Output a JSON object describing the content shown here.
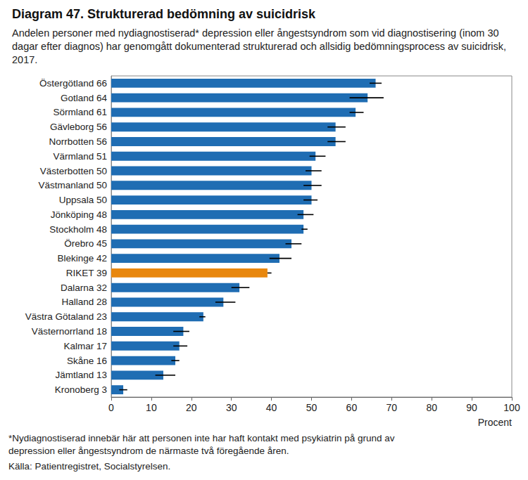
{
  "chart_data": {
    "type": "bar",
    "orientation": "horizontal",
    "title": "Diagram 47. Strukturerad bedömning av suicidrisk",
    "subtitle": "Andelen personer med nydiagnostiserad* depression eller ångestsyndrom som vid diagnostisering (inom 30 dagar efter diagnos) har genomgått dokumenterad strukturerad och allsidig bedömningsprocess av suicidrisk, 2017.",
    "categories": [
      "Östergötland 66",
      "Gotland 64",
      "Sörmland 61",
      "Gävleborg 56",
      "Norrbotten 56",
      "Värmland 51",
      "Västerbotten 50",
      "Västmanland 50",
      "Uppsala 50",
      "Jönköping 48",
      "Stockholm 48",
      "Örebro 45",
      "Blekinge 42",
      "RIKET 39",
      "Dalarna 32",
      "Halland 28",
      "Västra Götaland 23",
      "Västernorrland 18",
      "Kalmar 17",
      "Skåne 16",
      "Jämtland 13",
      "Kronoberg 3"
    ],
    "values": [
      66,
      64,
      61,
      56,
      56,
      51,
      50,
      50,
      50,
      48,
      48,
      45,
      42,
      39,
      32,
      28,
      23,
      18,
      17,
      16,
      13,
      3
    ],
    "error_low": [
      64.5,
      59.5,
      59.5,
      54,
      54,
      49.5,
      48.5,
      48,
      48,
      46.5,
      47.5,
      43.5,
      39.5,
      39,
      30,
      26,
      22,
      15.5,
      15.5,
      15,
      11,
      2
    ],
    "error_high": [
      67.5,
      68,
      63,
      58.5,
      58.5,
      53.5,
      52.5,
      52.5,
      51.5,
      50.5,
      49,
      47.5,
      45,
      40,
      34.5,
      31,
      23.5,
      19.5,
      19,
      17,
      16,
      4
    ],
    "colors": [
      "#1f6db3",
      "#1f6db3",
      "#1f6db3",
      "#1f6db3",
      "#1f6db3",
      "#1f6db3",
      "#1f6db3",
      "#1f6db3",
      "#1f6db3",
      "#1f6db3",
      "#1f6db3",
      "#1f6db3",
      "#1f6db3",
      "#e8870e",
      "#1f6db3",
      "#1f6db3",
      "#1f6db3",
      "#1f6db3",
      "#1f6db3",
      "#1f6db3",
      "#1f6db3",
      "#1f6db3"
    ],
    "xlabel": "Procent",
    "xlim": [
      0,
      100
    ],
    "xticks": [
      0,
      10,
      20,
      30,
      40,
      50,
      60,
      70,
      80,
      90,
      100
    ],
    "grid": false,
    "notes": [
      "*Nydiagnostiserad innebär här att personen inte har haft kontakt med psykiatrin på grund av depression eller ångestsyndrom de närmaste två föregående åren.",
      "Källa: Patientregistret, Socialstyrelsen."
    ]
  }
}
